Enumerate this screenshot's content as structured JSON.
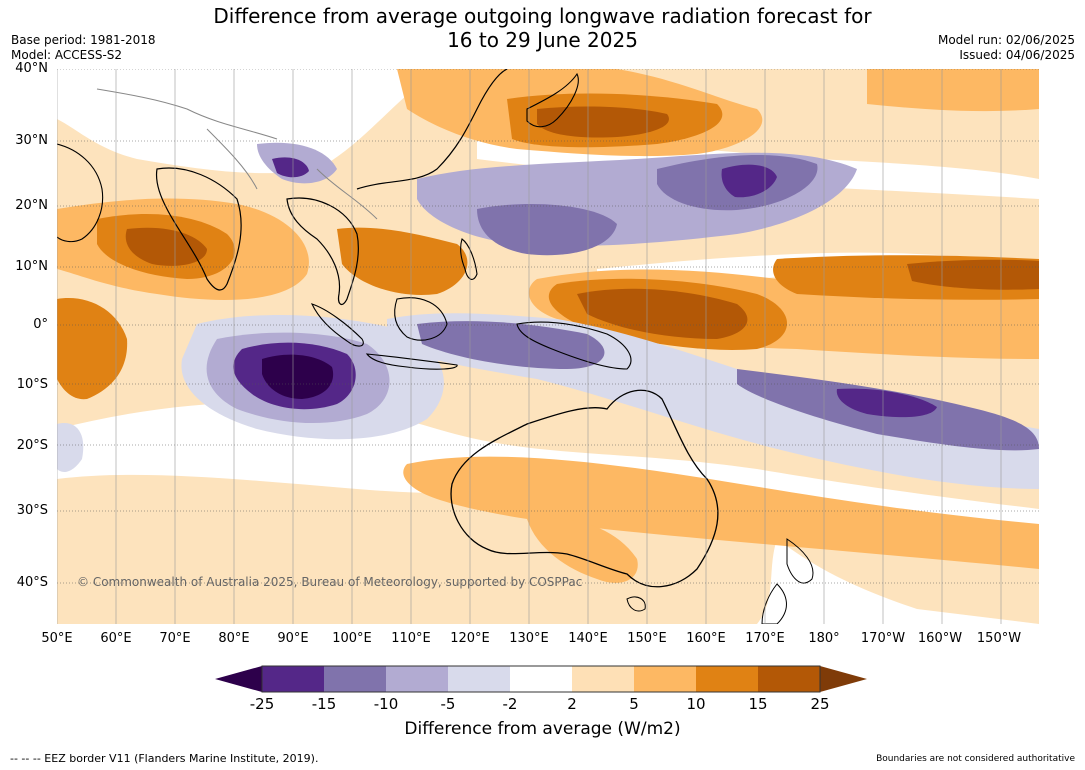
{
  "header": {
    "title_line1": "Difference from average outgoing longwave radiation forecast for",
    "title_line2": "16 to 29 June 2025",
    "base_period": "Base period: 1981-2018",
    "model": "Model: ACCESS-S2",
    "model_run": "Model run: 02/06/2025",
    "issued": "Issued: 04/06/2025"
  },
  "map": {
    "lat_labels": [
      "40°N",
      "30°N",
      "20°N",
      "10°N",
      "0°",
      "10°S",
      "20°S",
      "30°S",
      "40°S"
    ],
    "lon_labels": [
      "50°E",
      "60°E",
      "70°E",
      "80°E",
      "90°E",
      "100°E",
      "110°E",
      "120°E",
      "130°E",
      "140°E",
      "150°E",
      "160°E",
      "170°E",
      "180°",
      "170°W",
      "160°W",
      "150°W"
    ],
    "copyright": "© Commonwealth of Australia 2025, Bureau of Meteorology, supported by COSPPac"
  },
  "colorbar": {
    "labels": [
      "-25",
      "-15",
      "-10",
      "-5",
      "-2",
      "2",
      "5",
      "10",
      "15",
      "25"
    ],
    "colors": [
      "#2d004b",
      "#542788",
      "#8073ac",
      "#b2abd2",
      "#d8daeb",
      "#ffffff",
      "#fee0b6",
      "#fdb863",
      "#e08214",
      "#b35806",
      "#7f3b08"
    ],
    "title": "Difference from average (W/m2)"
  },
  "footer": {
    "eez": "--  --  -- EEZ border V11 (Flanders Marine Institute, 2019).",
    "disclaimer": "Boundaries are not considered authoritative"
  }
}
